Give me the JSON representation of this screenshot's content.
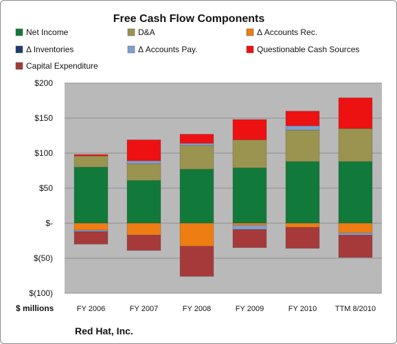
{
  "chart_data": {
    "type": "bar",
    "stacked": true,
    "title": "Free Cash Flow Components",
    "units_label": "$ millions",
    "company": "Red Hat, Inc.",
    "ylim": [
      -100,
      200
    ],
    "yticks": [
      {
        "value": 200,
        "label": "$200"
      },
      {
        "value": 150,
        "label": "$150"
      },
      {
        "value": 100,
        "label": "$100"
      },
      {
        "value": 50,
        "label": "$50"
      },
      {
        "value": 0,
        "label": "$-"
      },
      {
        "value": -50,
        "label": "$(50)"
      },
      {
        "value": -100,
        "label": "$(100)"
      }
    ],
    "grid": true,
    "legend_position": "top",
    "categories": [
      "FY 2006",
      "FY 2007",
      "FY 2008",
      "FY 2009",
      "FY 2010",
      "TTM 8/2010"
    ],
    "series": [
      {
        "name": "Net Income",
        "color": "#117a3a",
        "values": [
          80,
          61,
          77,
          79,
          88,
          88
        ]
      },
      {
        "name": "D&A",
        "color": "#9a9450",
        "values": [
          16,
          24,
          34,
          40,
          45,
          47
        ]
      },
      {
        "name": "Δ Accounts Rec.",
        "color": "#ee7d13",
        "values": [
          -10,
          -17,
          -33,
          -3,
          -6,
          -14
        ]
      },
      {
        "name": "Δ Inventories",
        "color": "#1d3c6b",
        "values": [
          0,
          0,
          0,
          0,
          0,
          0
        ]
      },
      {
        "name": "Δ Accounts Pay.",
        "color": "#7f9fd0",
        "values": [
          -2,
          4,
          3,
          -6,
          6,
          -3
        ]
      },
      {
        "name": "Questionable Cash Sources",
        "color": "#ee1111",
        "values": [
          2,
          30,
          13,
          29,
          21,
          44
        ]
      },
      {
        "name": "Capital Expenditure",
        "color": "#a63a3a",
        "values": [
          -18,
          -22,
          -43,
          -26,
          -30,
          -32
        ]
      }
    ]
  }
}
